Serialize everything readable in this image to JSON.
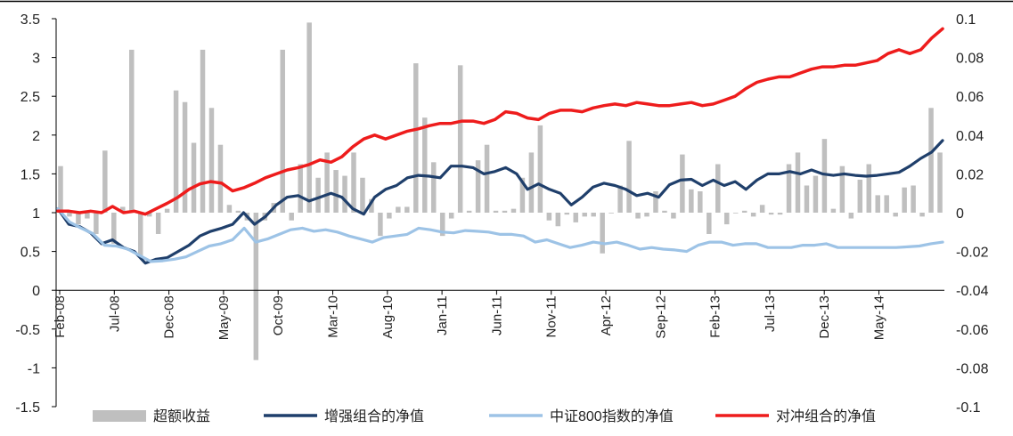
{
  "chart_data": {
    "type": "bar+line",
    "x_ticks": [
      "Feb-08",
      "Jul-08",
      "Dec-08",
      "May-09",
      "Oct-09",
      "Mar-10",
      "Aug-10",
      "Jan-11",
      "Jun-11",
      "Nov-11",
      "Apr-12",
      "Sep-12",
      "Feb-13",
      "Jul-13",
      "Dec-13",
      "May-14"
    ],
    "left_axis": {
      "ylim": [
        -1.5,
        3.5
      ],
      "ticks": [
        "-1.5",
        "-1",
        "-0.5",
        "0",
        "0.5",
        "1",
        "1.5",
        "2",
        "2.5",
        "3",
        "3.5"
      ]
    },
    "right_axis": {
      "ylim": [
        -0.1,
        0.1
      ],
      "ticks": [
        "-0.1",
        "-0.08",
        "-0.06",
        "-0.04",
        "-0.02",
        "0",
        "0.02",
        "0.04",
        "0.06",
        "0.08",
        "0.1"
      ]
    },
    "legend": [
      "超额收益",
      "增强组合的净值",
      "中证800指数的净值",
      "对冲组合的净值"
    ],
    "series": [
      {
        "name": "超额收益",
        "type": "bar",
        "axis": "right",
        "color": "#bfbfbf",
        "values": [
          0.024,
          -0.002,
          -0.006,
          -0.003,
          -0.011,
          0.032,
          -0.016,
          0.003,
          0.084,
          -0.023,
          -0.002,
          -0.011,
          0.002,
          0.063,
          0.057,
          0.036,
          0.084,
          0.054,
          0.035,
          0.004,
          0.001,
          -0.004,
          -0.076,
          -0.004,
          0.005,
          0.084,
          -0.004,
          0.025,
          0.098,
          0.018,
          0.031,
          0.022,
          0.019,
          0.031,
          0.018,
          0.007,
          -0.012,
          -0.003,
          0.003,
          0.003,
          0.077,
          0.049,
          0.026,
          -0.012,
          -0.003,
          0.076,
          0.001,
          0.027,
          0.035,
          0.001,
          0.001,
          0.002,
          0.018,
          0.031,
          0.045,
          -0.004,
          -0.007,
          -0.001,
          -0.005,
          -0.002,
          -0.002,
          -0.021,
          0.0,
          0.014,
          0.037,
          -0.003,
          -0.002,
          0.011,
          0.001,
          -0.003,
          0.03,
          0.012,
          0.011,
          -0.011,
          0.025,
          -0.006,
          0.0,
          0.001,
          -0.002,
          0.004,
          -0.001,
          -0.001,
          0.025,
          0.031,
          0.014,
          0.019,
          0.038,
          0.002,
          0.024,
          -0.003,
          0.017,
          0.025,
          0.009,
          0.009,
          -0.002,
          0.013,
          0.014,
          -0.002,
          0.054,
          0.031
        ]
      },
      {
        "name": "增强组合的净值",
        "type": "line",
        "axis": "left",
        "color": "#1f3f6b",
        "values": [
          1.05,
          0.85,
          0.82,
          0.74,
          0.6,
          0.65,
          0.55,
          0.5,
          0.35,
          0.4,
          0.42,
          0.5,
          0.58,
          0.7,
          0.76,
          0.8,
          0.85,
          1.0,
          0.85,
          0.95,
          1.1,
          1.2,
          1.22,
          1.15,
          1.2,
          1.25,
          1.2,
          1.05,
          0.98,
          1.2,
          1.3,
          1.35,
          1.45,
          1.48,
          1.47,
          1.45,
          1.6,
          1.6,
          1.58,
          1.5,
          1.53,
          1.58,
          1.5,
          1.3,
          1.37,
          1.3,
          1.25,
          1.1,
          1.2,
          1.33,
          1.38,
          1.35,
          1.3,
          1.22,
          1.25,
          1.2,
          1.36,
          1.42,
          1.43,
          1.35,
          1.42,
          1.35,
          1.4,
          1.3,
          1.42,
          1.5,
          1.5,
          1.53,
          1.5,
          1.55,
          1.5,
          1.48,
          1.5,
          1.48,
          1.47,
          1.48,
          1.5,
          1.52,
          1.6,
          1.7,
          1.78,
          1.93
        ]
      },
      {
        "name": "中证800指数的净值",
        "type": "line",
        "axis": "left",
        "color": "#9dc3e6",
        "values": [
          1.05,
          0.88,
          0.8,
          0.73,
          0.58,
          0.57,
          0.53,
          0.45,
          0.37,
          0.38,
          0.4,
          0.43,
          0.5,
          0.57,
          0.6,
          0.65,
          0.8,
          0.62,
          0.66,
          0.72,
          0.78,
          0.8,
          0.76,
          0.78,
          0.75,
          0.7,
          0.66,
          0.62,
          0.68,
          0.7,
          0.72,
          0.8,
          0.78,
          0.75,
          0.74,
          0.77,
          0.76,
          0.75,
          0.72,
          0.72,
          0.7,
          0.62,
          0.65,
          0.6,
          0.55,
          0.58,
          0.62,
          0.6,
          0.62,
          0.58,
          0.53,
          0.55,
          0.53,
          0.52,
          0.5,
          0.58,
          0.62,
          0.62,
          0.58,
          0.6,
          0.6,
          0.55,
          0.55,
          0.55,
          0.58,
          0.58,
          0.6,
          0.55,
          0.55,
          0.55,
          0.55,
          0.55,
          0.55,
          0.56,
          0.57,
          0.6,
          0.62
        ]
      },
      {
        "name": "对冲组合的净值",
        "type": "line",
        "axis": "left",
        "color": "#ee1c1c",
        "values": [
          1.02,
          1.02,
          1.0,
          1.02,
          1.0,
          1.08,
          1.0,
          1.02,
          0.98,
          1.05,
          1.12,
          1.2,
          1.3,
          1.37,
          1.4,
          1.38,
          1.28,
          1.32,
          1.38,
          1.45,
          1.5,
          1.55,
          1.58,
          1.62,
          1.68,
          1.65,
          1.72,
          1.85,
          1.95,
          2.0,
          1.95,
          2.0,
          2.05,
          2.08,
          2.12,
          2.15,
          2.15,
          2.18,
          2.18,
          2.15,
          2.2,
          2.3,
          2.28,
          2.22,
          2.2,
          2.28,
          2.32,
          2.32,
          2.3,
          2.35,
          2.38,
          2.4,
          2.38,
          2.42,
          2.4,
          2.38,
          2.38,
          2.4,
          2.42,
          2.38,
          2.4,
          2.45,
          2.5,
          2.6,
          2.68,
          2.72,
          2.75,
          2.75,
          2.8,
          2.85,
          2.88,
          2.88,
          2.9,
          2.9,
          2.93,
          2.96,
          3.05,
          3.1,
          3.05,
          3.1,
          3.25,
          3.37
        ]
      }
    ]
  }
}
